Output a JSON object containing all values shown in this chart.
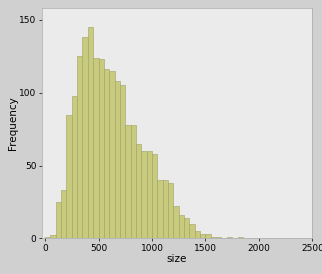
{
  "bar_heights": [
    1,
    2,
    25,
    33,
    85,
    98,
    125,
    138,
    145,
    124,
    123,
    116,
    115,
    108,
    105,
    78,
    78,
    65,
    60,
    60,
    58,
    40,
    40,
    38,
    22,
    16,
    14,
    10,
    5,
    3,
    3,
    1,
    1,
    0,
    1,
    0,
    1
  ],
  "bin_width": 50,
  "bin_start": 0,
  "bar_color": "#c8cb7e",
  "bar_edge_color": "#a0a060",
  "bar_edge_width": 0.4,
  "xlabel": "size",
  "ylabel": "Frequency",
  "xlim": [
    -30,
    2500
  ],
  "ylim": [
    0,
    158
  ],
  "xticks": [
    0,
    500,
    1000,
    1500,
    2000,
    2500
  ],
  "yticks": [
    0,
    50,
    100,
    150
  ],
  "plot_bg_color": "#ebebeb",
  "outer_bg_color": "#d0d0d0",
  "tick_fontsize": 6.5,
  "label_fontsize": 7.5
}
